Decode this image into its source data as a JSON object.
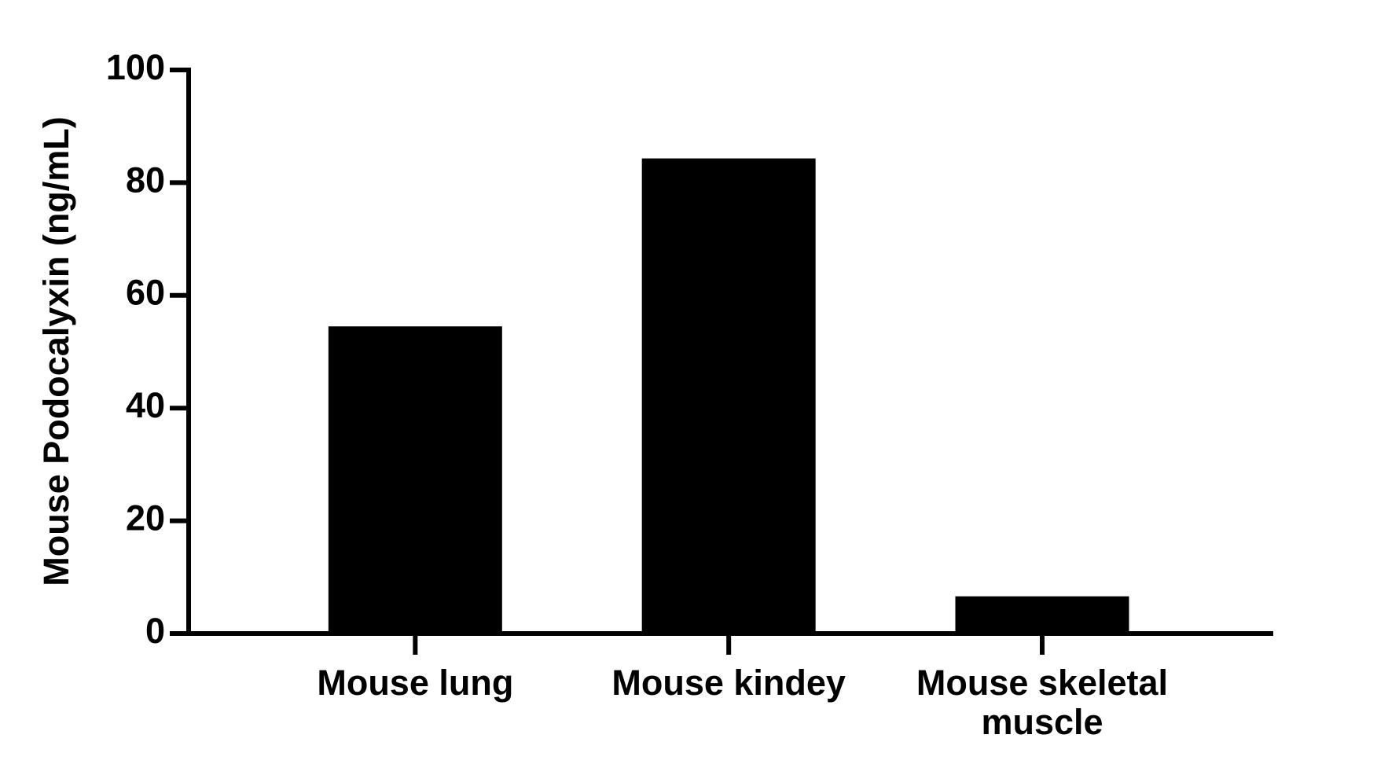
{
  "chart_data": {
    "type": "bar",
    "y_label": "Mouse Podocalyxin (ng/mL)",
    "categories": [
      "Mouse lung",
      "Mouse kindey",
      "Mouse skeletal muscle"
    ],
    "values": [
      54.5,
      84.3,
      6.6
    ],
    "color": "#000000",
    "ylim": [
      0,
      100
    ],
    "yticks": [
      0,
      20,
      40,
      60,
      80,
      100
    ]
  }
}
